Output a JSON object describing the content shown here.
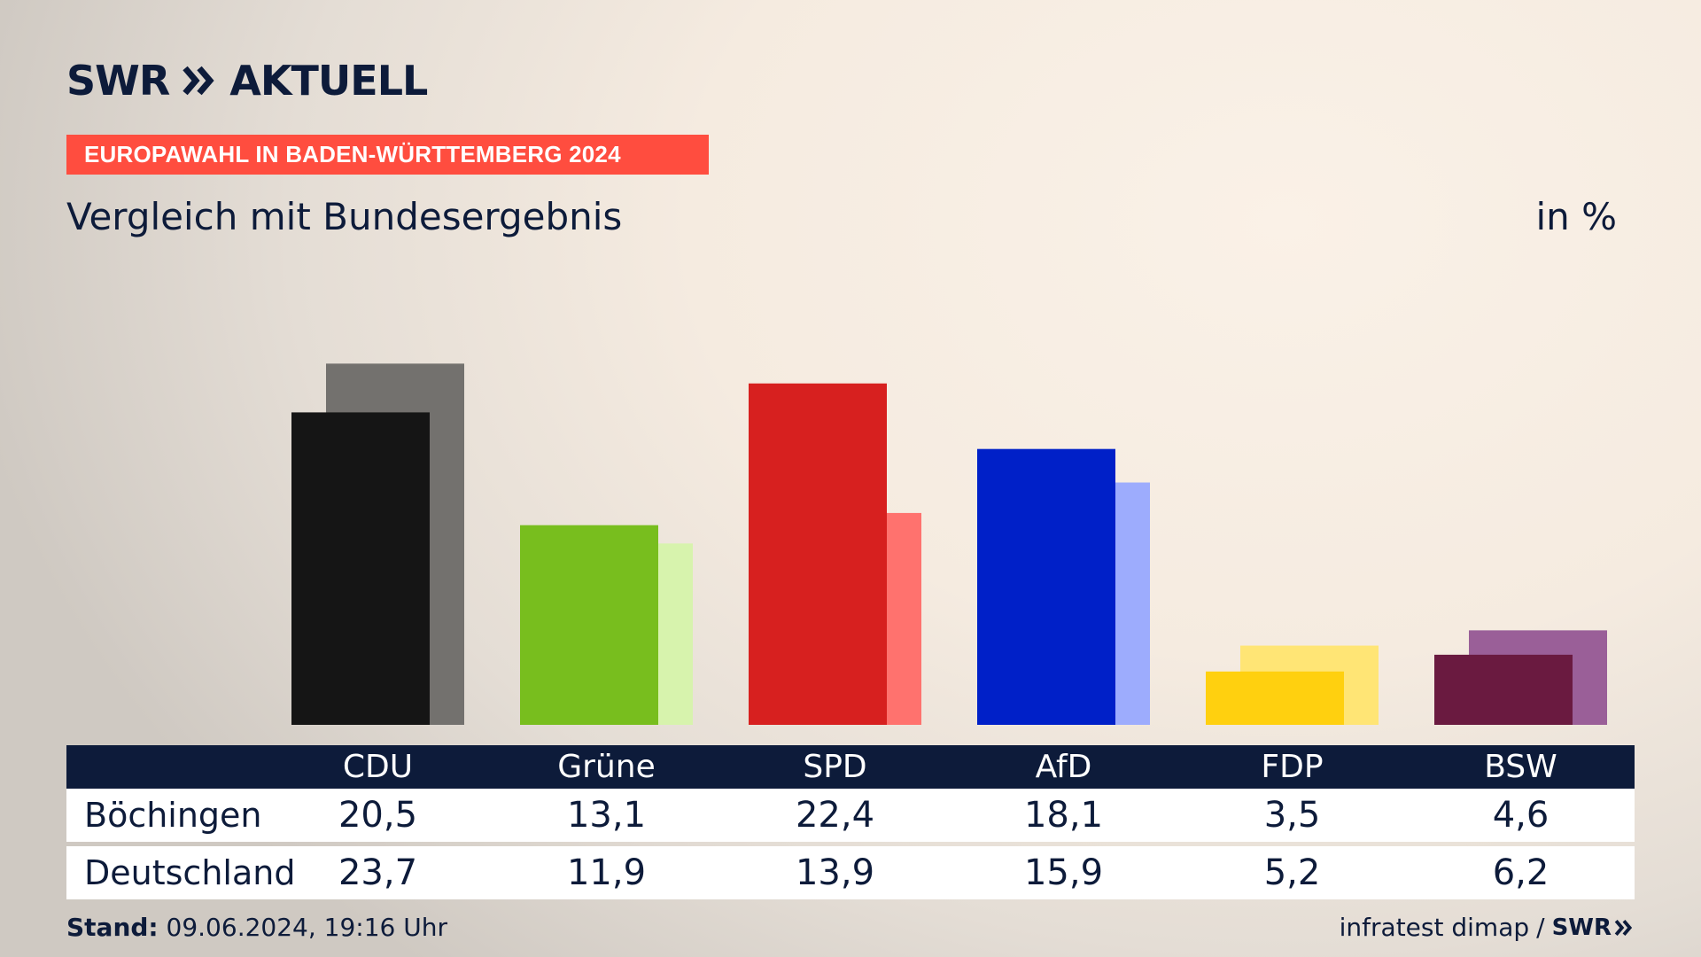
{
  "logo": {
    "brand": "SWR",
    "product": "AKTUELL"
  },
  "banner": "EUROPAWAHL IN BADEN-WÜRTTEMBERG 2024",
  "subtitle": "Vergleich mit Bundesergebnis",
  "unit": "in %",
  "table": {
    "rows": [
      {
        "label": "Böchingen",
        "values": [
          "20,5",
          "13,1",
          "22,4",
          "18,1",
          "3,5",
          "4,6"
        ]
      },
      {
        "label": "Deutschland",
        "values": [
          "23,7",
          "11,9",
          "13,9",
          "15,9",
          "5,2",
          "6,2"
        ]
      }
    ]
  },
  "footer": {
    "stand_label": "Stand:",
    "stand_value": "09.06.2024, 19:16 Uhr",
    "source": "infratest dimap",
    "separator": "/",
    "source_logo": "SWR"
  },
  "colors": {
    "accent": "#ff4d3f",
    "navy": "#0d1b3a",
    "parties_local": [
      "#151515",
      "#78be1e",
      "#d7201f",
      "#0020c8",
      "#ffd00f",
      "#6a1a40"
    ],
    "parties_national": [
      "#73716e",
      "#d7f3ad",
      "#ff726e",
      "#9dacfd",
      "#ffe575",
      "#9a5f98"
    ]
  },
  "chart_data": {
    "type": "bar",
    "categories": [
      "CDU",
      "Grüne",
      "SPD",
      "AfD",
      "FDP",
      "BSW"
    ],
    "series": [
      {
        "name": "Böchingen",
        "values": [
          20.5,
          13.1,
          22.4,
          18.1,
          3.5,
          4.6
        ]
      },
      {
        "name": "Deutschland",
        "values": [
          23.7,
          11.9,
          13.9,
          15.9,
          5.2,
          6.2
        ]
      }
    ],
    "title": "Vergleich mit Bundesergebnis",
    "ylabel": "in %",
    "grid": false,
    "legend": "none"
  }
}
